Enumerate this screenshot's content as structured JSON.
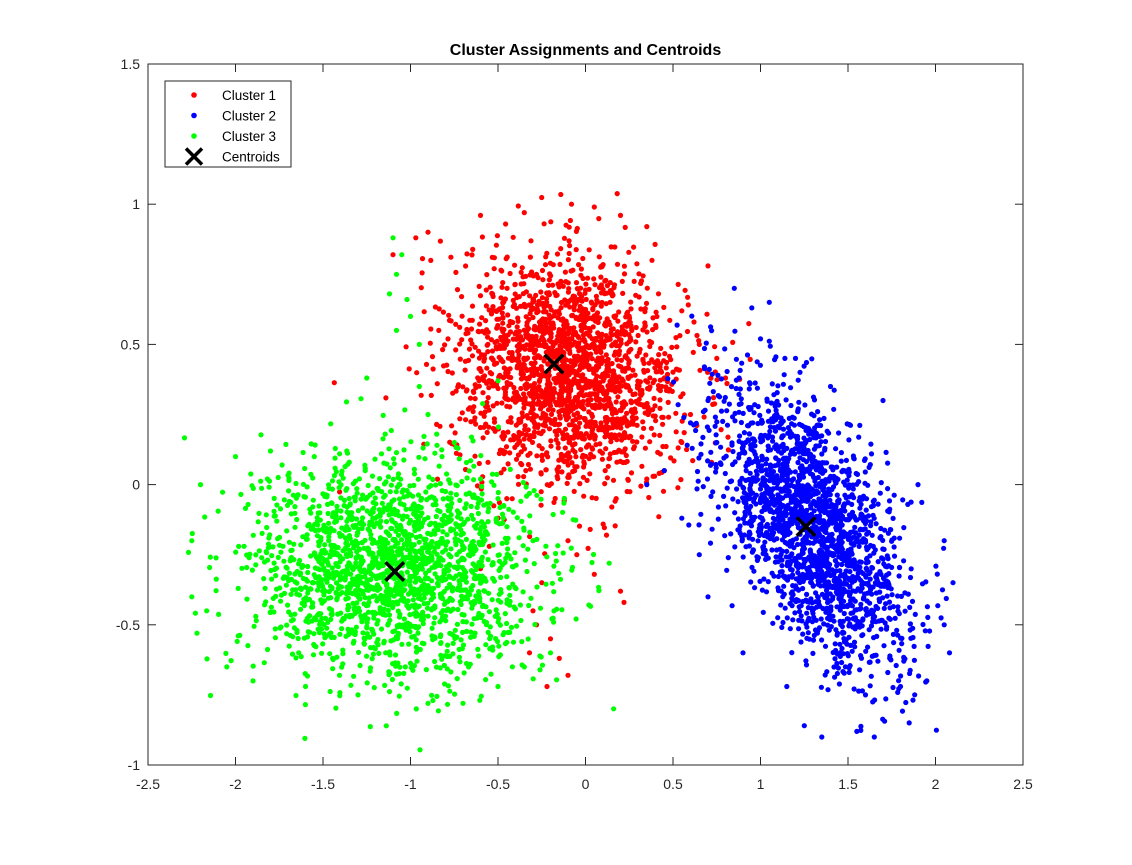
{
  "chart_data": {
    "type": "scatter",
    "title": "Cluster Assignments and Centroids",
    "xlabel": "",
    "ylabel": "",
    "xlim": [
      -2.5,
      2.5
    ],
    "ylim": [
      -1,
      1.5
    ],
    "xticks": [
      -2.5,
      -2,
      -1.5,
      -1,
      -0.5,
      0,
      0.5,
      1,
      1.5,
      2,
      2.5
    ],
    "xtick_labels": [
      "-2.5",
      "-2",
      "-1.5",
      "-1",
      "-0.5",
      "0",
      "0.5",
      "1",
      "1.5",
      "2",
      "2.5"
    ],
    "yticks": [
      -1,
      -0.5,
      0,
      0.5,
      1,
      1.5
    ],
    "ytick_labels": [
      "-1",
      "-0.5",
      "0",
      "0.5",
      "1",
      "1.5"
    ],
    "grid": false,
    "legend_position": "top-left",
    "series": [
      {
        "name": "Cluster 1",
        "color": "#ff0000",
        "marker": "dot",
        "distribution": {
          "type": "gaussian",
          "count": 2000,
          "center": [
            -0.1,
            0.4
          ],
          "spread": [
            0.32,
            0.2
          ],
          "angle_deg": -6
        },
        "points": [
          [
            -1.1,
            0.82
          ],
          [
            -0.97,
            0.88
          ],
          [
            -0.9,
            0.9
          ],
          [
            -0.6,
            0.96
          ],
          [
            -0.35,
            0.97
          ],
          [
            -0.08,
            1.0
          ],
          [
            0.05,
            0.99
          ],
          [
            0.2,
            0.96
          ],
          [
            0.35,
            0.92
          ],
          [
            0.38,
            0.8
          ],
          [
            0.7,
            0.78
          ],
          [
            0.55,
            0.62
          ],
          [
            0.65,
            0.5
          ],
          [
            0.75,
            0.45
          ],
          [
            0.8,
            0.38
          ],
          [
            0.6,
            0.25
          ],
          [
            0.55,
            0.15
          ],
          [
            0.45,
            0.05
          ],
          [
            0.35,
            0.02
          ],
          [
            0.15,
            -0.08
          ],
          [
            -0.1,
            -0.2
          ],
          [
            -0.25,
            -0.35
          ],
          [
            -0.3,
            -0.45
          ],
          [
            -0.2,
            -0.55
          ],
          [
            -0.15,
            -0.62
          ],
          [
            -0.1,
            -0.68
          ],
          [
            -0.22,
            -0.72
          ],
          [
            0.2,
            -0.38
          ],
          [
            0.22,
            -0.42
          ],
          [
            0.05,
            -0.32
          ],
          [
            -0.45,
            -0.05
          ],
          [
            -0.5,
            -0.12
          ],
          [
            -0.55,
            -0.22
          ],
          [
            -0.6,
            -0.3
          ],
          [
            -0.32,
            -0.6
          ],
          [
            -0.28,
            -0.5
          ],
          [
            0.12,
            -0.18
          ],
          [
            -0.05,
            -0.25
          ],
          [
            0.48,
            0.34
          ],
          [
            0.62,
            0.58
          ]
        ]
      },
      {
        "name": "Cluster 2",
        "color": "#0000ff",
        "marker": "dot",
        "distribution": {
          "type": "gaussian",
          "count": 2000,
          "center": [
            1.3,
            -0.15
          ],
          "spread": [
            0.32,
            0.16
          ],
          "angle_deg": -42
        },
        "points": [
          [
            0.85,
            0.7
          ],
          [
            0.95,
            0.63
          ],
          [
            1.05,
            0.65
          ],
          [
            1.0,
            0.52
          ],
          [
            1.2,
            0.45
          ],
          [
            0.7,
            0.3
          ],
          [
            0.35,
            0.0
          ],
          [
            0.45,
            0.05
          ],
          [
            0.6,
            0.22
          ],
          [
            1.4,
            0.35
          ],
          [
            1.7,
            0.3
          ],
          [
            1.9,
            0.0
          ],
          [
            2.05,
            -0.2
          ],
          [
            2.1,
            -0.35
          ],
          [
            2.05,
            -0.5
          ],
          [
            2.08,
            -0.6
          ],
          [
            1.95,
            -0.7
          ],
          [
            1.85,
            -0.85
          ],
          [
            1.65,
            -0.9
          ],
          [
            1.55,
            -0.88
          ],
          [
            1.35,
            -0.9
          ],
          [
            1.25,
            -0.86
          ],
          [
            1.15,
            -0.72
          ],
          [
            0.9,
            -0.6
          ],
          [
            0.7,
            -0.4
          ],
          [
            0.65,
            -0.25
          ],
          [
            0.55,
            -0.12
          ],
          [
            0.75,
            0.15
          ],
          [
            1.6,
            -0.75
          ],
          [
            1.8,
            -0.72
          ]
        ]
      },
      {
        "name": "Cluster 3",
        "color": "#00ff00",
        "marker": "dot",
        "distribution": {
          "type": "gaussian",
          "count": 2000,
          "center": [
            -1.1,
            -0.3
          ],
          "spread": [
            0.4,
            0.19
          ],
          "angle_deg": 0
        },
        "points": [
          [
            -1.1,
            0.88
          ],
          [
            -1.05,
            0.82
          ],
          [
            -1.08,
            0.75
          ],
          [
            -1.12,
            0.68
          ],
          [
            -1.02,
            0.66
          ],
          [
            -1.0,
            0.6
          ],
          [
            -0.95,
            0.5
          ],
          [
            -1.08,
            0.55
          ],
          [
            -1.25,
            0.38
          ],
          [
            -0.95,
            0.35
          ],
          [
            -0.9,
            0.25
          ],
          [
            -0.85,
            0.18
          ],
          [
            -0.82,
            0.1
          ],
          [
            -0.75,
            0.15
          ],
          [
            -2.25,
            -0.2
          ],
          [
            -2.25,
            -0.4
          ],
          [
            -2.22,
            -0.53
          ],
          [
            -2.2,
            0.0
          ],
          [
            -2.0,
            0.1
          ],
          [
            -1.8,
            0.12
          ],
          [
            -1.55,
            0.1
          ],
          [
            -1.35,
            0.08
          ],
          [
            -2.05,
            -0.65
          ],
          [
            -1.9,
            -0.7
          ],
          [
            -1.6,
            -0.72
          ],
          [
            -1.3,
            -0.75
          ],
          [
            -0.9,
            -0.78
          ],
          [
            -0.7,
            -0.78
          ],
          [
            -0.5,
            -0.72
          ],
          [
            -0.35,
            -0.65
          ],
          [
            -0.2,
            -0.6
          ],
          [
            -0.18,
            -0.45
          ],
          [
            -0.3,
            -0.2
          ],
          [
            -0.6,
            0.02
          ],
          [
            -0.5,
            -0.05
          ]
        ]
      },
      {
        "name": "Centroids",
        "color": "#000000",
        "marker": "x",
        "points": [
          [
            -0.18,
            0.43
          ],
          [
            1.26,
            -0.15
          ],
          [
            -1.09,
            -0.31
          ]
        ]
      }
    ]
  }
}
